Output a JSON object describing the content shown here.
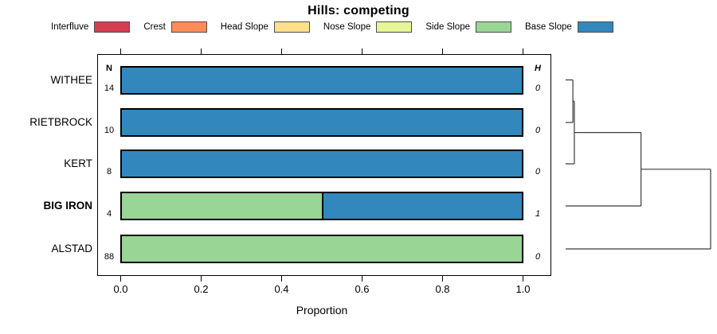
{
  "title": "Hills: competing",
  "columns": {
    "n": "N",
    "h": "H"
  },
  "axis": {
    "label": "Proportion",
    "ticks": [
      {
        "value": 0.0,
        "label": "0.0"
      },
      {
        "value": 0.2,
        "label": "0.2"
      },
      {
        "value": 0.4,
        "label": "0.4"
      },
      {
        "value": 0.6,
        "label": "0.6"
      },
      {
        "value": 0.8,
        "label": "0.8"
      },
      {
        "value": 1.0,
        "label": "1.0"
      }
    ]
  },
  "legend": {
    "items": [
      {
        "label": "Interfluve",
        "color": "#D53E4F"
      },
      {
        "label": "Crest",
        "color": "#FC8D59"
      },
      {
        "label": "Head Slope",
        "color": "#FEE08B"
      },
      {
        "label": "Nose Slope",
        "color": "#E6F598"
      },
      {
        "label": "Side Slope",
        "color": "#99D594"
      },
      {
        "label": "Base Slope",
        "color": "#3288BD"
      }
    ]
  },
  "chart_data": {
    "type": "bar",
    "orientation": "horizontal-stacked",
    "title": "Hills: competing",
    "xlabel": "Proportion",
    "xlim": [
      0.0,
      1.0
    ],
    "grid": false,
    "legend_position": "top",
    "classes": [
      "Interfluve",
      "Crest",
      "Head Slope",
      "Nose Slope",
      "Side Slope",
      "Base Slope"
    ],
    "class_colors": [
      "#D53E4F",
      "#FC8D59",
      "#FEE08B",
      "#E6F598",
      "#99D594",
      "#3288BD"
    ],
    "rows": [
      {
        "label": "WITHEE",
        "n": "14",
        "h": "0",
        "bold": false,
        "segments": [
          {
            "class": "Base Slope",
            "color": "#3288BD",
            "value": 1.0
          }
        ]
      },
      {
        "label": "RIETBROCK",
        "n": "10",
        "h": "0",
        "bold": false,
        "segments": [
          {
            "class": "Base Slope",
            "color": "#3288BD",
            "value": 1.0
          }
        ]
      },
      {
        "label": "KERT",
        "n": "8",
        "h": "0",
        "bold": false,
        "segments": [
          {
            "class": "Base Slope",
            "color": "#3288BD",
            "value": 1.0
          }
        ]
      },
      {
        "label": "BIG IRON",
        "n": "4",
        "h": "1",
        "bold": true,
        "segments": [
          {
            "class": "Side Slope",
            "color": "#99D594",
            "value": 0.5
          },
          {
            "class": "Base Slope",
            "color": "#3288BD",
            "value": 0.5
          }
        ]
      },
      {
        "label": "ALSTAD",
        "n": "88",
        "h": "0",
        "bold": false,
        "segments": [
          {
            "class": "Side Slope",
            "color": "#99D594",
            "value": 1.0
          }
        ]
      }
    ],
    "dendrogram": {
      "note": "agglomerative clustering of rows, heights normalized 0-1",
      "merges": [
        {
          "left": "leaf:0",
          "right": "leaf:1",
          "height": 0.05
        },
        {
          "left": "node:0",
          "right": "leaf:2",
          "height": 0.06
        },
        {
          "left": "node:1",
          "right": "leaf:3",
          "height": 0.52
        },
        {
          "left": "node:2",
          "right": "leaf:4",
          "height": 1.0
        }
      ]
    }
  }
}
